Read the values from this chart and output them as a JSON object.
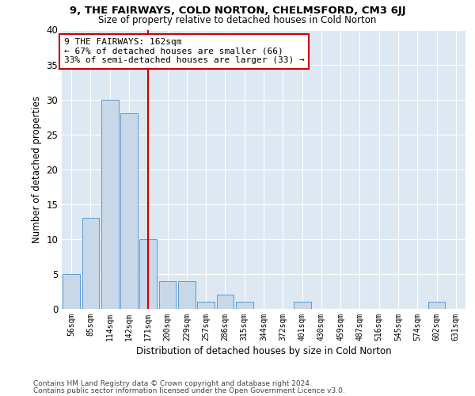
{
  "title1": "9, THE FAIRWAYS, COLD NORTON, CHELMSFORD, CM3 6JJ",
  "title2": "Size of property relative to detached houses in Cold Norton",
  "xlabel": "Distribution of detached houses by size in Cold Norton",
  "ylabel": "Number of detached properties",
  "categories": [
    "56sqm",
    "85sqm",
    "114sqm",
    "142sqm",
    "171sqm",
    "200sqm",
    "229sqm",
    "257sqm",
    "286sqm",
    "315sqm",
    "344sqm",
    "372sqm",
    "401sqm",
    "430sqm",
    "459sqm",
    "487sqm",
    "516sqm",
    "545sqm",
    "574sqm",
    "602sqm",
    "631sqm"
  ],
  "values": [
    5,
    13,
    30,
    28,
    10,
    4,
    4,
    1,
    2,
    1,
    0,
    0,
    1,
    0,
    0,
    0,
    0,
    0,
    0,
    1,
    0
  ],
  "bar_color": "#c8d8e8",
  "bar_edge_color": "#5b9bd5",
  "vline_color": "#cc0000",
  "vline_pos": 4.5,
  "ylim": [
    0,
    40
  ],
  "yticks": [
    0,
    5,
    10,
    15,
    20,
    25,
    30,
    35,
    40
  ],
  "annotation_text": "9 THE FAIRWAYS: 162sqm\n← 67% of detached houses are smaller (66)\n33% of semi-detached houses are larger (33) →",
  "annotation_box_color": "#ffffff",
  "annotation_box_edge": "#cc0000",
  "footer1": "Contains HM Land Registry data © Crown copyright and database right 2024.",
  "footer2": "Contains public sector information licensed under the Open Government Licence v3.0.",
  "plot_bg_color": "#dde8f3"
}
